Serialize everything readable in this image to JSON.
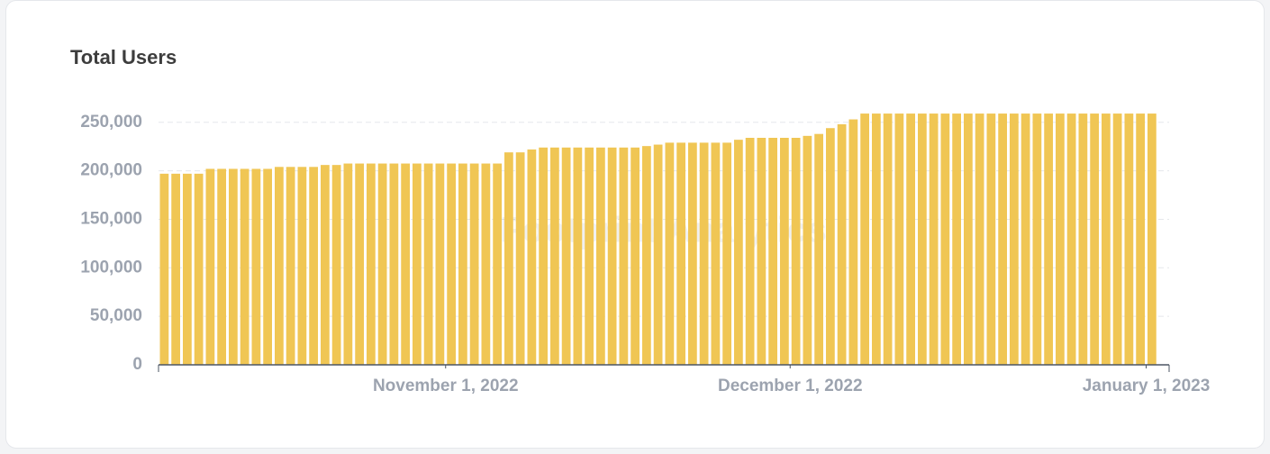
{
  "chart_data": {
    "type": "bar",
    "title": "Total Users",
    "watermark": "Footprint Analytics",
    "color": "#f0c654",
    "x": [
      "2022-10-07",
      "2022-10-08",
      "2022-10-09",
      "2022-10-10",
      "2022-10-11",
      "2022-10-12",
      "2022-10-13",
      "2022-10-14",
      "2022-10-15",
      "2022-10-16",
      "2022-10-17",
      "2022-10-18",
      "2022-10-19",
      "2022-10-20",
      "2022-10-21",
      "2022-10-22",
      "2022-10-23",
      "2022-10-24",
      "2022-10-25",
      "2022-10-26",
      "2022-10-27",
      "2022-10-28",
      "2022-10-29",
      "2022-10-30",
      "2022-10-31",
      "2022-11-01",
      "2022-11-02",
      "2022-11-03",
      "2022-11-04",
      "2022-11-05",
      "2022-11-06",
      "2022-11-07",
      "2022-11-08",
      "2022-11-09",
      "2022-11-10",
      "2022-11-11",
      "2022-11-12",
      "2022-11-13",
      "2022-11-14",
      "2022-11-15",
      "2022-11-16",
      "2022-11-17",
      "2022-11-18",
      "2022-11-19",
      "2022-11-20",
      "2022-11-21",
      "2022-11-22",
      "2022-11-23",
      "2022-11-24",
      "2022-11-25",
      "2022-11-26",
      "2022-11-27",
      "2022-11-28",
      "2022-11-29",
      "2022-11-30",
      "2022-12-01",
      "2022-12-02",
      "2022-12-03",
      "2022-12-04",
      "2022-12-05",
      "2022-12-06",
      "2022-12-07",
      "2022-12-08",
      "2022-12-09",
      "2022-12-10",
      "2022-12-11",
      "2022-12-12",
      "2022-12-13",
      "2022-12-14",
      "2022-12-15",
      "2022-12-16",
      "2022-12-17",
      "2022-12-18",
      "2022-12-19",
      "2022-12-20",
      "2022-12-21",
      "2022-12-22",
      "2022-12-23",
      "2022-12-24",
      "2022-12-25",
      "2022-12-26",
      "2022-12-27",
      "2022-12-28",
      "2022-12-29",
      "2022-12-30",
      "2022-12-31",
      "2023-01-01"
    ],
    "values": [
      197000,
      197000,
      197000,
      197000,
      202000,
      202000,
      202000,
      202000,
      202000,
      202000,
      204000,
      204000,
      204000,
      204000,
      206000,
      206000,
      207500,
      207500,
      207500,
      207500,
      207500,
      207500,
      207500,
      207500,
      207500,
      207500,
      207500,
      207500,
      207500,
      207500,
      219000,
      219000,
      222000,
      224000,
      224000,
      224000,
      224000,
      224000,
      224000,
      224000,
      224000,
      224000,
      225500,
      227000,
      229000,
      229000,
      229000,
      229000,
      229000,
      229000,
      232000,
      234000,
      234000,
      234000,
      234000,
      234000,
      236000,
      238000,
      244000,
      248000,
      253000,
      259000,
      259000,
      259000,
      259000,
      259000,
      259000,
      259000,
      259000,
      259000,
      259000,
      259000,
      259000,
      259000,
      259000,
      259000,
      259000,
      259000,
      259000,
      259000,
      259000,
      259000,
      259000,
      259000,
      259000,
      259000,
      259000
    ],
    "xlim": [
      "2022-10-07",
      "2023-01-03"
    ],
    "xticks": [
      {
        "value": "2022-11-01",
        "label": "November 1, 2022"
      },
      {
        "value": "2022-12-01",
        "label": "December 1, 2022"
      },
      {
        "value": "2023-01-01",
        "label": "January 1, 2023"
      }
    ],
    "ylim": [
      0,
      260000
    ],
    "yticks": [
      {
        "value": 0,
        "label": "0"
      },
      {
        "value": 50000,
        "label": "50,000"
      },
      {
        "value": 100000,
        "label": "100,000"
      },
      {
        "value": 150000,
        "label": "150,000"
      },
      {
        "value": 200000,
        "label": "200,000"
      },
      {
        "value": 250000,
        "label": "250,000"
      }
    ],
    "grid": true
  }
}
